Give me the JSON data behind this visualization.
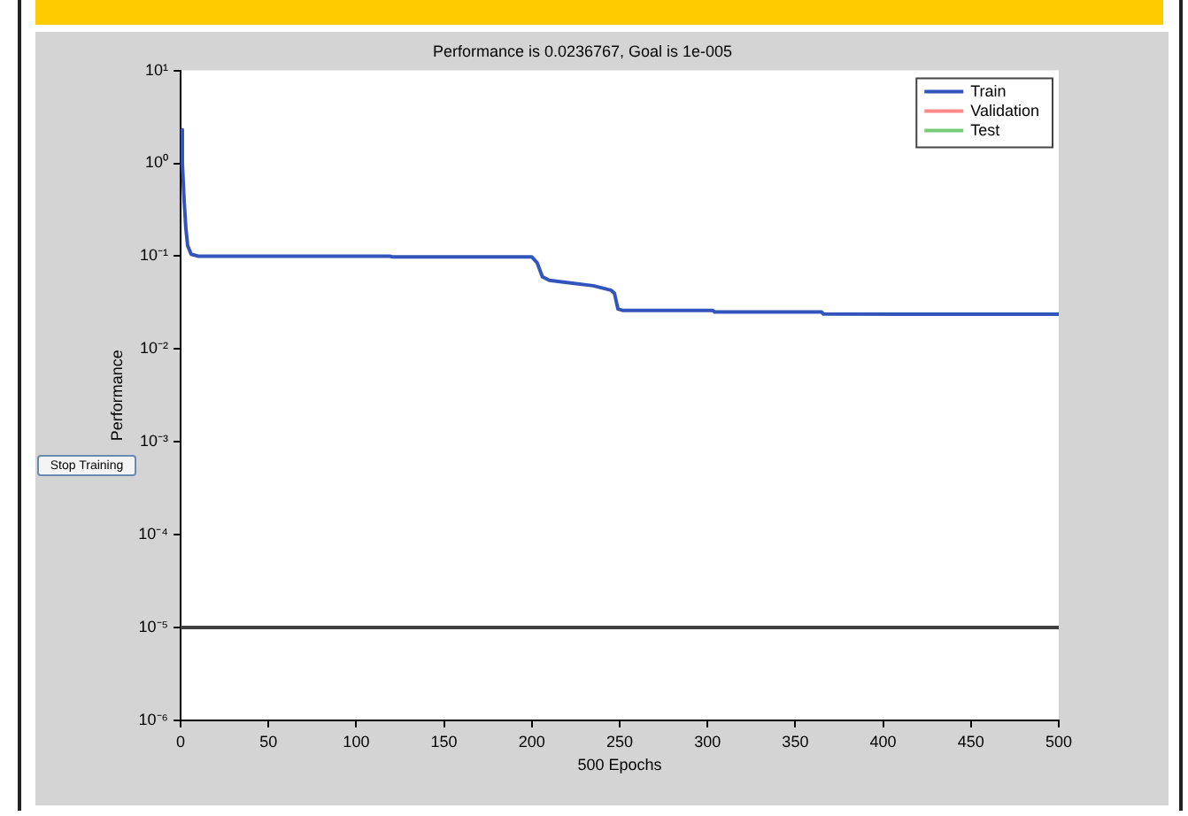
{
  "chart_data": {
    "type": "line",
    "title": "Performance is 0.0236767, Goal is 1e-005",
    "xlabel": "500 Epochs",
    "ylabel": "Performance",
    "annotations": [
      "Stop Training"
    ],
    "xlim": [
      0,
      500
    ],
    "xticks": [
      0,
      50,
      100,
      150,
      200,
      250,
      300,
      350,
      400,
      450,
      500
    ],
    "ylim": [
      1e-06,
      10
    ],
    "yticks": [
      {
        "value": 1e-06,
        "label": "10⁻⁶"
      },
      {
        "value": 1e-05,
        "label": "10⁻⁵"
      },
      {
        "value": 0.0001,
        "label": "10⁻⁴"
      },
      {
        "value": 0.001,
        "label": "10⁻³"
      },
      {
        "value": 0.01,
        "label": "10⁻²"
      },
      {
        "value": 0.1,
        "label": "10⁻¹"
      },
      {
        "value": 1,
        "label": "10⁰"
      },
      {
        "value": 10,
        "label": "10¹"
      }
    ],
    "log": "y",
    "grid": false,
    "legend": "top right",
    "marker": "none",
    "line_style": "solid",
    "ref_lines": [
      {
        "axis": "y",
        "value": 1e-05,
        "color": "#404040"
      }
    ],
    "series": [
      {
        "name": "Train",
        "color": "#3355bb",
        "x": [
          0,
          1,
          2,
          3,
          4,
          6,
          10,
          119,
          121,
          200,
          203,
          206,
          210,
          220,
          235,
          245,
          247,
          249,
          252,
          303,
          304,
          365,
          366,
          500
        ],
        "values": [
          2.3,
          1.0,
          0.4,
          0.2,
          0.13,
          0.105,
          0.1,
          0.1,
          0.098,
          0.098,
          0.085,
          0.06,
          0.055,
          0.052,
          0.048,
          0.043,
          0.04,
          0.027,
          0.026,
          0.026,
          0.025,
          0.025,
          0.0238,
          0.0237
        ]
      },
      {
        "name": "Validation",
        "color": "#ff8888"
      },
      {
        "name": "Test",
        "color": "#77cc77"
      }
    ]
  }
}
